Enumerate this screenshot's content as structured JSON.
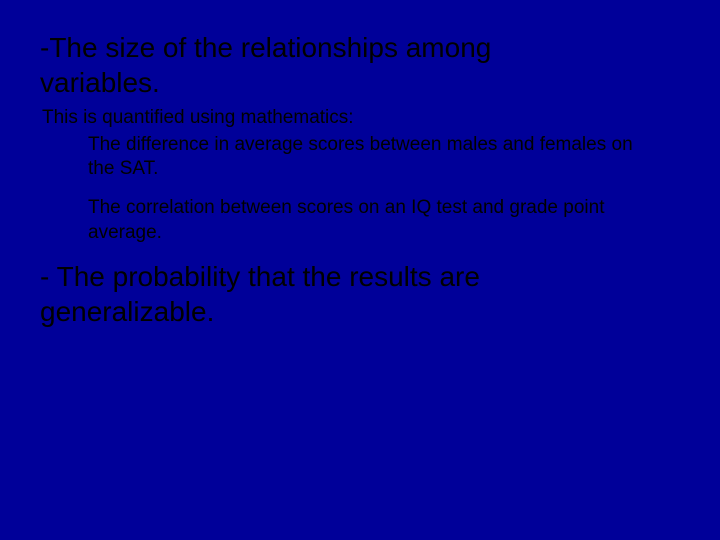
{
  "background_color": "#000099",
  "text_color": "#000000",
  "heading1_line1": "-The size of the relationships among",
  "heading1_line2": "variables.",
  "sub_intro": "This is quantified using mathematics:",
  "example1": "The difference in average scores between males and females on the SAT.",
  "example2": "The correlation between scores on an IQ test and grade point average.",
  "heading2_line1": "- The probability that the results are",
  "heading2_line2": "generalizable.",
  "font_family": "Arial",
  "heading_fontsize": 28,
  "body_fontsize": 19,
  "slide_width": 720,
  "slide_height": 540
}
